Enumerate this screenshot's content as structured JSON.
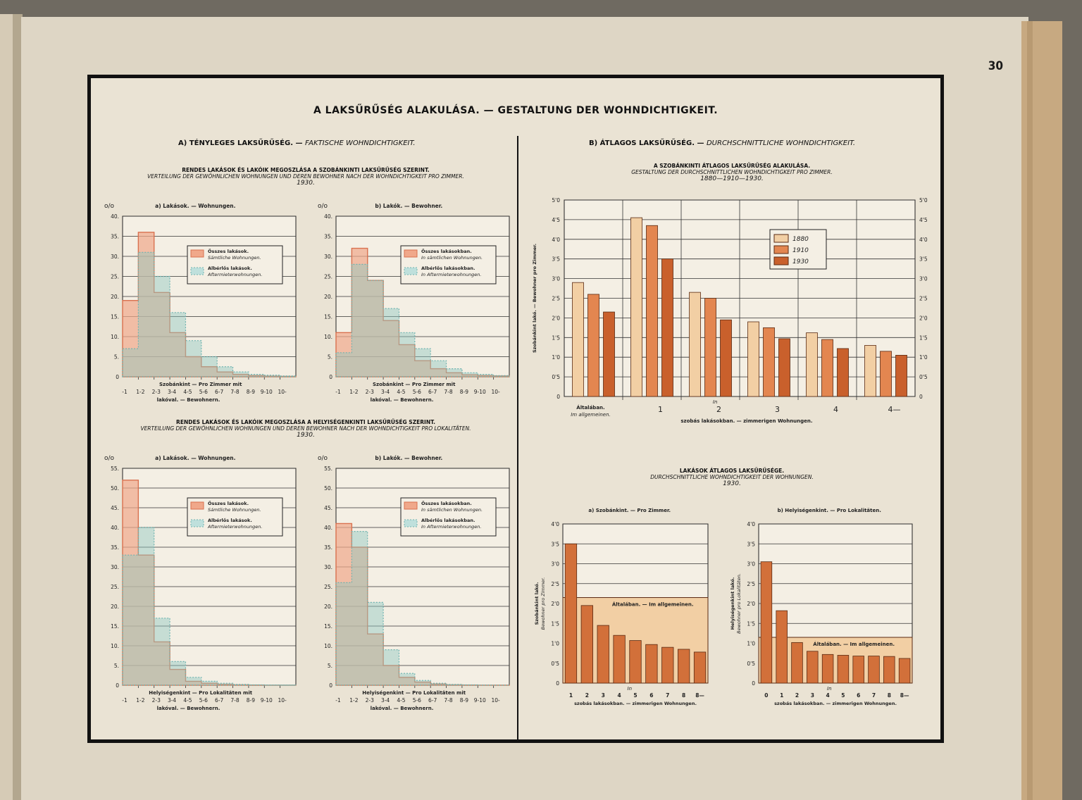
{
  "page_number": "30",
  "title": "A LAKSŰRŰSÉG ALAKULÁSA. — GESTALTUNG DER WOHNDICHTIGKEIT.",
  "section_a": {
    "hu": "A) TÉNYLEGES LAKSŰRŰSÉG. —",
    "de": "FAKTISCHE WOHNDICHTIGKEIT."
  },
  "section_b": {
    "hu": "B) ÁTLAGOS LAKSŰRŰSÉG. —",
    "de": "DURCHSCHNITTLICHE WOHNDICHTIGKEIT."
  },
  "sub_a1": {
    "hu": "RENDES LAKÁSOK ÉS LAKÓIK MEGOSZLÁSA A SZOBÁNKINTI LAKSŰRŰSÉG SZERINT.",
    "de": "VERTEILUNG DER GEWÖHNLICHEN WOHNUNGEN UND DEREN BEWOHNER NACH DER WOHNDICHTIGKEIT PRO ZIMMER.",
    "year": "1930."
  },
  "sub_a2": {
    "hu": "RENDES LAKÁSOK ÉS LAKÓIK MEGOSZLÁSA A HELYISÉGENKINTI LAKSŰRŰSÉG SZERINT.",
    "de": "VERTEILUNG DER GEWÖHNLICHEN WOHNUNGEN UND DEREN BEWOHNER NACH DER WOHNDICHTIGKEIT PRO LOKALITÄTEN.",
    "year": "1930."
  },
  "sub_b1": {
    "hu": "A SZOBÁNKINTI ÁTLAGOS LAKSŰRŰSÉG ALAKULÁSA.",
    "de": "GESTALTUNG DER DURCHSCHNITTLICHEN WOHNDICHTIGKEIT PRO ZIMMER.",
    "year": "1880—1910—1930."
  },
  "sub_b2": {
    "hu": "LAKÁSOK ÁTLAGOS LAKSŰRŰSÉGE.",
    "de": "DURCHSCHNITTLICHE WOHNDICHTIGKEIT DER WOHNUNGEN.",
    "year": "1930."
  },
  "chart_data": [
    {
      "type": "area",
      "title": "a) Lakások. — Wohnungen.",
      "unit": "o/o",
      "categories": [
        "-1",
        "1-2",
        "2-3",
        "3-4",
        "4-5",
        "5-6",
        "6-7",
        "7-8",
        "8-9",
        "9-10",
        "10-"
      ],
      "series": [
        {
          "name": "Összes lakások. Sämtliche Wohnungen.",
          "values": [
            19,
            36,
            21,
            11,
            5,
            2.5,
            1.2,
            0.6,
            0.3,
            0.15,
            0.1
          ]
        },
        {
          "name": "Albérlős lakások. Aftermieterwohnungen.",
          "values": [
            7,
            31,
            25,
            16,
            9,
            5,
            2.5,
            1.2,
            0.6,
            0.4,
            0.2
          ]
        }
      ],
      "ylim": [
        0,
        40
      ],
      "yticks": [
        "0",
        "5.",
        "10.",
        "15.",
        "20.",
        "25.",
        "30.",
        "35.",
        "40."
      ],
      "xlabel": [
        "Szobánkint — Pro Zimmer mit",
        "lakóval. — Bewohnern."
      ]
    },
    {
      "type": "area",
      "title": "b) Lakók. — Bewohner.",
      "unit": "o/o",
      "categories": [
        "-1",
        "1-2",
        "2-3",
        "3-4",
        "4-5",
        "5-6",
        "6-7",
        "7-8",
        "8-9",
        "9-10",
        "10-"
      ],
      "series": [
        {
          "name": "Összes lakásokban. In sämtlichen Wohnungen.",
          "values": [
            11,
            32,
            24,
            14,
            8,
            4,
            2,
            1,
            0.5,
            0.3,
            0.2
          ]
        },
        {
          "name": "Albérlős lakásokban. In Aftermieterwohnungen.",
          "values": [
            6,
            28,
            24,
            17,
            11,
            7,
            4,
            2,
            1,
            0.6,
            0.3
          ]
        }
      ],
      "ylim": [
        0,
        40
      ],
      "yticks": [
        "0",
        "5.",
        "10.",
        "15.",
        "20.",
        "25.",
        "30.",
        "35.",
        "40."
      ],
      "xlabel": [
        "Szobánkint — Pro Zimmer mit",
        "lakóval. — Bewohnern."
      ]
    },
    {
      "type": "area",
      "title": "a) Lakások. — Wohnungen.",
      "unit": "o/o",
      "categories": [
        "-1",
        "1-2",
        "2-3",
        "3-4",
        "4-5",
        "5-6",
        "6-7",
        "7-8",
        "8-9",
        "9-10",
        "10-"
      ],
      "series": [
        {
          "name": "Összes lakások. Sámtliche Wohnungen.",
          "values": [
            52,
            33,
            11,
            4,
            1,
            0.5,
            0.2,
            0.1,
            0.05,
            0.02,
            0.01
          ]
        },
        {
          "name": "Albérlős lakások. Aftermieterwohnungen.",
          "values": [
            33,
            40,
            17,
            6,
            2,
            1,
            0.5,
            0.2,
            0.1,
            0.05,
            0.02
          ]
        }
      ],
      "ylim": [
        0,
        55
      ],
      "yticks": [
        "0",
        "5.",
        "10.",
        "15.",
        "20.",
        "25.",
        "30.",
        "35.",
        "40.",
        "45.",
        "50.",
        "55."
      ],
      "xlabel": [
        "Helyiségenkint — Pro Lokalitäten mit",
        "lakóval. — Bewohnern."
      ]
    },
    {
      "type": "area",
      "title": "b) Lakók. — Bewohner.",
      "unit": "o/o",
      "categories": [
        "-1",
        "1-2",
        "2-3",
        "3-4",
        "4-5",
        "5-6",
        "6-7",
        "7-8",
        "8-9",
        "9-10",
        "10-"
      ],
      "series": [
        {
          "name": "Összes lakásokban. In sämtlichen Wohnungen.",
          "values": [
            41,
            35,
            13,
            5,
            2,
            0.8,
            0.3,
            0.1,
            0.05,
            0.02,
            0.01
          ]
        },
        {
          "name": "Albérlős lakásokban. In Aftermieterwohnungen.",
          "values": [
            26,
            39,
            21,
            9,
            3,
            1.2,
            0.5,
            0.2,
            0.1,
            0.05,
            0.02
          ]
        }
      ],
      "ylim": [
        0,
        55
      ],
      "yticks": [
        "0",
        "5.",
        "10.",
        "15.",
        "20.",
        "25.",
        "30.",
        "35.",
        "40.",
        "45.",
        "50.",
        "55."
      ],
      "xlabel": [
        "Helyiségenkint — Pro Lokalitäten mit",
        "lakóval. — Bewohnern."
      ]
    },
    {
      "type": "bar",
      "categories": [
        "Általában. Im allgemeinen.",
        "1",
        "2",
        "3",
        "4",
        "4—"
      ],
      "series": [
        {
          "name": "1880",
          "values": [
            2.9,
            4.55,
            2.65,
            1.9,
            1.62,
            1.3
          ]
        },
        {
          "name": "1910",
          "values": [
            2.6,
            4.35,
            2.5,
            1.75,
            1.45,
            1.15
          ]
        },
        {
          "name": "1930",
          "values": [
            2.15,
            3.5,
            1.95,
            1.47,
            1.22,
            1.05
          ]
        }
      ],
      "ylim": [
        0,
        5
      ],
      "yticks": [
        "0",
        "0'5",
        "1'0",
        "1'5",
        "2'0",
        "2'5",
        "3'0",
        "3'5",
        "4'0",
        "4'5",
        "5'0"
      ],
      "ylabel": [
        "Szobánkint lakó. —",
        "Bewohner pro Zimmer."
      ],
      "xlabel": [
        "In",
        "szobás lakásokban. — zimmerigen Wohnungen."
      ]
    },
    {
      "type": "bar",
      "title": "a) Szobánkint. — Pro Zimmer.",
      "categories": [
        "1",
        "2",
        "3",
        "4",
        "5",
        "6",
        "7",
        "8",
        "8—"
      ],
      "values": [
        3.5,
        1.95,
        1.45,
        1.2,
        1.07,
        0.97,
        0.9,
        0.85,
        0.78
      ],
      "average": {
        "label": "Általában. — Im allgemeinen.",
        "value": 2.15
      },
      "ylim": [
        0,
        4
      ],
      "yticks": [
        "0",
        "0'5",
        "1'0",
        "1'5",
        "2'0",
        "2'5",
        "3'0",
        "3'5",
        "4'0"
      ],
      "ylabel": [
        "Szobánkint lakó.",
        "Bewohner pro Zimmer."
      ],
      "xlabel": [
        "In",
        "szobás lakásokban. — zimmerigen Wohnungen."
      ]
    },
    {
      "type": "bar",
      "title": "b) Helyiségenkint. — Pro Lokalitäten.",
      "categories": [
        "0",
        "1",
        "2",
        "3",
        "4",
        "5",
        "6",
        "7",
        "8",
        "8—"
      ],
      "values": [
        3.05,
        1.82,
        1.02,
        0.8,
        0.72,
        0.7,
        0.68,
        0.68,
        0.67,
        0.62
      ],
      "average": {
        "label": "Általában. — Im allgemeinen.",
        "value": 1.15
      },
      "ylim": [
        0,
        4
      ],
      "yticks": [
        "0",
        "0'5",
        "1'0",
        "1'5",
        "2'0",
        "2'5",
        "3'0",
        "3'5",
        "4'0"
      ],
      "ylabel": [
        "Helyiségenkint lakó.",
        "Bewohner pro Lokalitäten."
      ],
      "xlabel": [
        "In",
        "szobás lakásokban. — zimmerigen Wohnungen."
      ]
    }
  ]
}
